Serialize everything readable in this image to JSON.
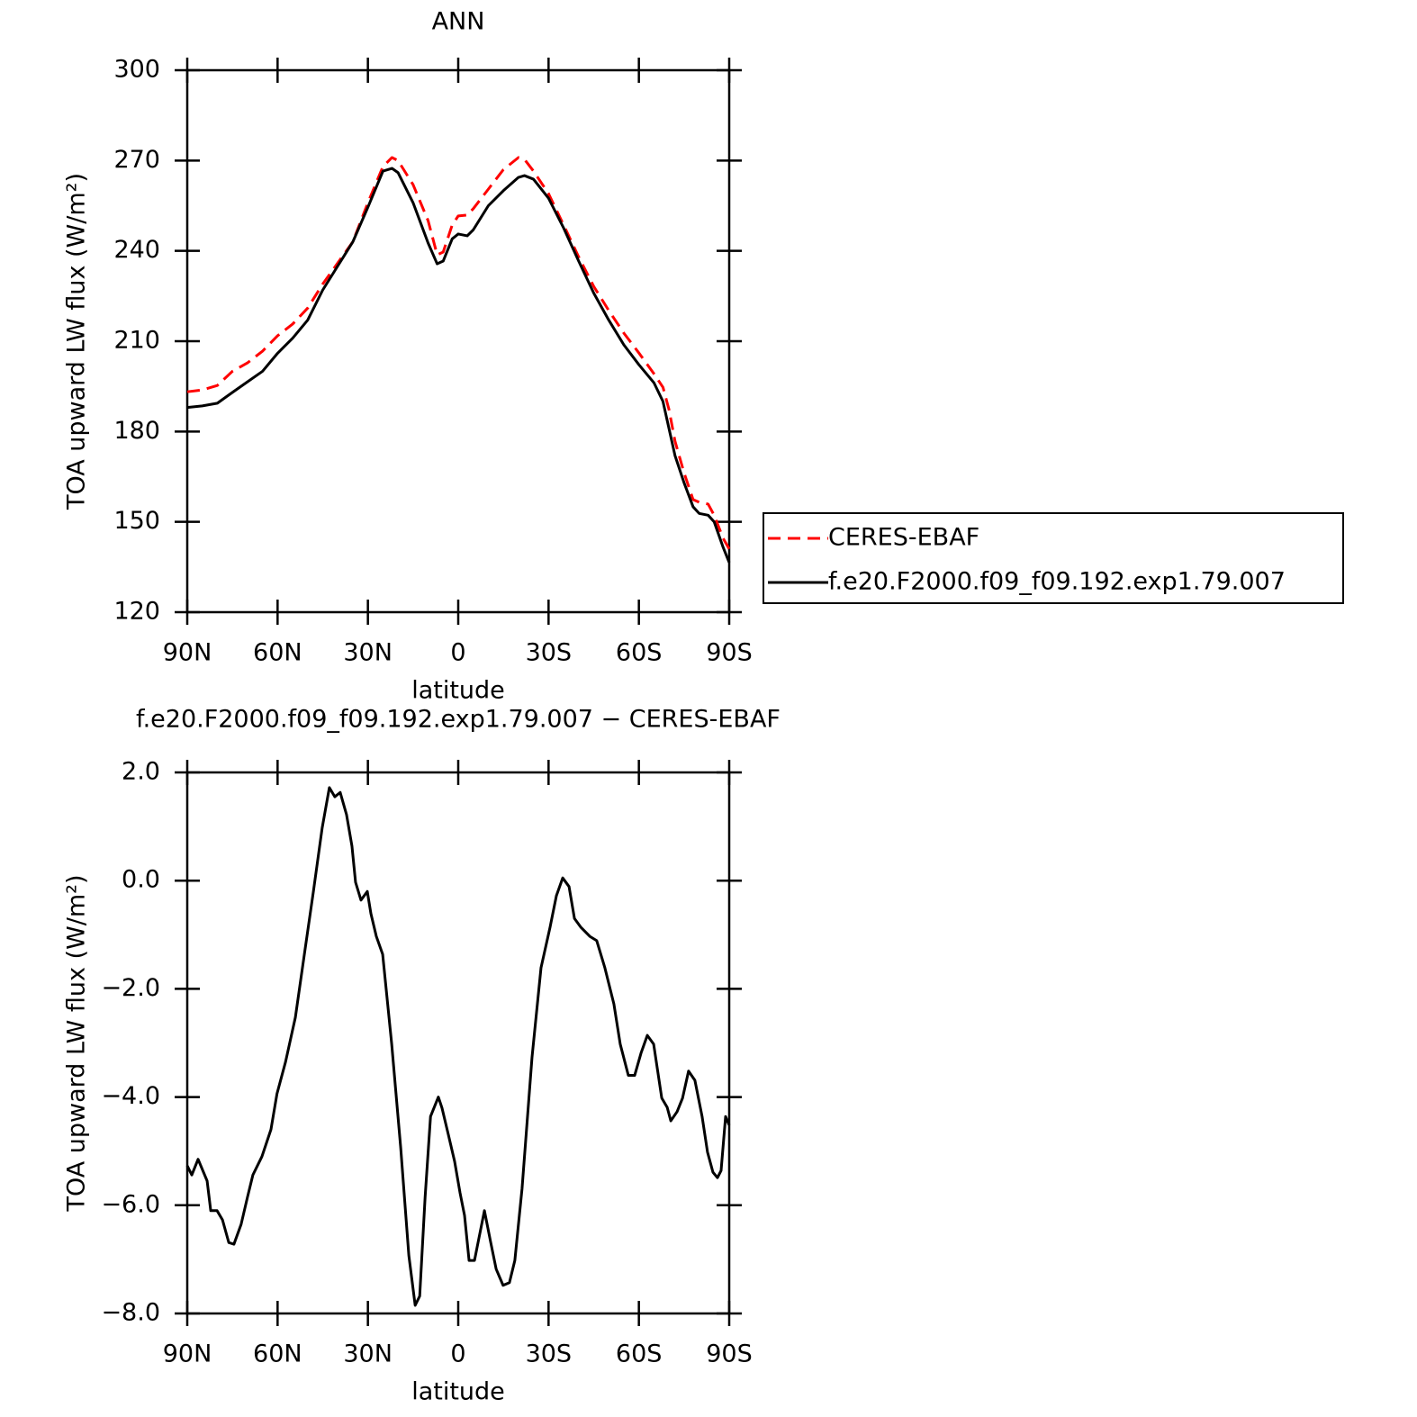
{
  "chart_data": [
    {
      "type": "line",
      "title": "ANN",
      "xlabel": "latitude",
      "ylabel": "TOA upward LW flux (W/m²)",
      "legend": "right",
      "x": [
        90,
        85,
        80,
        75,
        70,
        65,
        60,
        55,
        50,
        45,
        40,
        35,
        30,
        25,
        22,
        20,
        15,
        10,
        7,
        5,
        2,
        0,
        -3,
        -5,
        -10,
        -15,
        -20,
        -22,
        -25,
        -30,
        -35,
        -40,
        -45,
        -50,
        -55,
        -60,
        -65,
        -68,
        -70,
        -72,
        -75,
        -78,
        -80,
        -83,
        -85,
        -88,
        -90
      ],
      "series": [
        {
          "name": "CERES-EBAF",
          "color": "#ff0000",
          "dash": true,
          "values": [
            193.2,
            193.8,
            195.3,
            200,
            202.8,
            206.7,
            211.8,
            215.7,
            221,
            229,
            236,
            243,
            256,
            268,
            271,
            270,
            262,
            250,
            238.7,
            239.6,
            248.6,
            251.6,
            251.9,
            254,
            260.5,
            267,
            271,
            270.4,
            266.5,
            259,
            248.6,
            238,
            228.2,
            220.2,
            212.7,
            206.1,
            199.2,
            194.7,
            187.3,
            176.8,
            166.3,
            157.4,
            156.5,
            155.9,
            152.2,
            144.5,
            141
          ]
        },
        {
          "name": "f.e20.F2000.f09_f09.192.exp1.79.007",
          "color": "#000000",
          "dash": false,
          "values": [
            188,
            188.5,
            189.4,
            193,
            196.5,
            200,
            206,
            211,
            217,
            227,
            235,
            243,
            254.5,
            266.5,
            267.4,
            266,
            256,
            242.6,
            235.7,
            236.6,
            244,
            245.6,
            245,
            247,
            255,
            260,
            264.4,
            265,
            263.8,
            257.5,
            247.6,
            236.6,
            226,
            217,
            208.8,
            202.2,
            196.2,
            190,
            181,
            172,
            163,
            155,
            152.8,
            152.2,
            150,
            141.5,
            136.5
          ]
        }
      ],
      "xlim": [
        90,
        -90
      ],
      "xticks": [
        {
          "value": 90,
          "label": "90N"
        },
        {
          "value": 60,
          "label": "60N"
        },
        {
          "value": 30,
          "label": "30N"
        },
        0,
        {
          "value": -30,
          "label": "30S"
        },
        {
          "value": -60,
          "label": "60S"
        },
        {
          "value": -90,
          "label": "90S"
        }
      ],
      "ylim": [
        120,
        300
      ],
      "yticks": [
        120,
        150,
        180,
        210,
        240,
        270,
        300
      ]
    },
    {
      "type": "line",
      "title": "f.e20.F2000.f09_f09.192.exp1.79.007 − CERES-EBAF",
      "xlabel": "latitude",
      "ylabel": "TOA upward LW flux (W/m²)",
      "x": [
        90,
        88.5,
        86.4,
        83.4,
        82.2,
        80.1,
        78.3,
        76.2,
        74.5,
        72.1,
        70,
        68.2,
        65.2,
        62.2,
        60.2,
        57.4,
        54.1,
        51.1,
        48.1,
        45.2,
        42.8,
        41,
        39.2,
        37.1,
        35.3,
        34.1,
        32.3,
        30.2,
        29,
        27.2,
        25.1,
        22.1,
        19.1,
        16.4,
        14.3,
        12.8,
        11,
        9.2,
        6.6,
        5.4,
        3.3,
        1.2,
        -0.6,
        -2.1,
        -3.6,
        -5.4,
        -6.9,
        -8.7,
        -10.8,
        -12.6,
        -14.9,
        -17,
        -18.8,
        -21.2,
        -24.5,
        -27.5,
        -30.5,
        -32.6,
        -34.7,
        -36.8,
        -38.6,
        -40.7,
        -43.7,
        -46,
        -48.7,
        -51.7,
        -53.8,
        -56.5,
        -58.6,
        -60.7,
        -62.8,
        -64.9,
        -67.6,
        -69.4,
        -70.6,
        -72.7,
        -74.5,
        -76.5,
        -78.6,
        -81,
        -82.8,
        -84.6,
        -86.1,
        -87.3,
        -88.8,
        -90
      ],
      "color": "#000000",
      "values": [
        -5.27,
        -5.44,
        -5.15,
        -5.55,
        -6.1,
        -6.1,
        -6.27,
        -6.69,
        -6.72,
        -6.35,
        -5.85,
        -5.44,
        -5.1,
        -4.6,
        -3.94,
        -3.36,
        -2.53,
        -1.36,
        -0.2,
        0.97,
        1.72,
        1.55,
        1.63,
        1.22,
        0.64,
        -0.03,
        -0.36,
        -0.2,
        -0.61,
        -1.03,
        -1.36,
        -3.02,
        -4.94,
        -6.93,
        -7.85,
        -7.68,
        -5.85,
        -4.36,
        -4.0,
        -4.2,
        -4.69,
        -5.19,
        -5.77,
        -6.19,
        -7.02,
        -7.02,
        -6.6,
        -6.1,
        -6.69,
        -7.18,
        -7.48,
        -7.43,
        -7.02,
        -5.69,
        -3.27,
        -1.61,
        -0.86,
        -0.28,
        0.05,
        -0.11,
        -0.7,
        -0.86,
        -1.03,
        -1.11,
        -1.61,
        -2.28,
        -3.02,
        -3.6,
        -3.6,
        -3.19,
        -2.86,
        -3.02,
        -4.02,
        -4.19,
        -4.44,
        -4.27,
        -4.02,
        -3.52,
        -3.69,
        -4.36,
        -5.02,
        -5.39,
        -5.49,
        -5.36,
        -4.36,
        -4.52
      ],
      "xlim": [
        90,
        -90
      ],
      "xticks": [
        {
          "value": 90,
          "label": "90N"
        },
        {
          "value": 60,
          "label": "60N"
        },
        {
          "value": 30,
          "label": "30N"
        },
        0,
        {
          "value": -30,
          "label": "30S"
        },
        {
          "value": -60,
          "label": "60S"
        },
        {
          "value": -90,
          "label": "90S"
        }
      ],
      "ylim": [
        -8,
        2
      ],
      "yticks": [
        {
          "value": -8,
          "label": "−8.0"
        },
        {
          "value": -6,
          "label": "−6.0"
        },
        {
          "value": -4,
          "label": "−4.0"
        },
        {
          "value": -2,
          "label": "−2.0"
        },
        {
          "value": 0,
          "label": "0.0"
        },
        {
          "value": 2,
          "label": "2.0"
        }
      ]
    }
  ]
}
